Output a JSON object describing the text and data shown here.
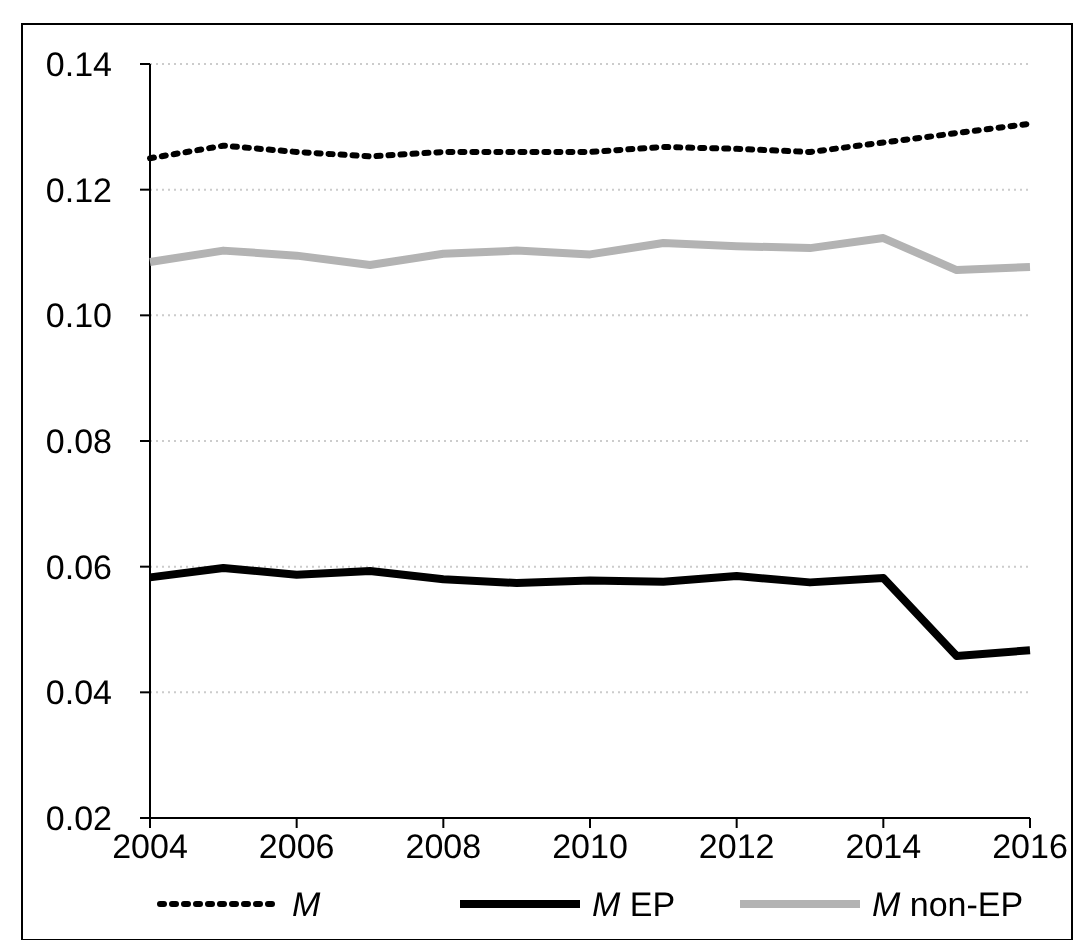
{
  "chart_data": {
    "type": "line",
    "x": [
      2004,
      2005,
      2006,
      2007,
      2008,
      2009,
      2010,
      2011,
      2012,
      2013,
      2014,
      2015,
      2016
    ],
    "xlim": [
      2004,
      2016
    ],
    "xticks": [
      2004,
      2006,
      2008,
      2010,
      2012,
      2014,
      2016
    ],
    "ylim": [
      0.02,
      0.14
    ],
    "yticks": [
      {
        "value": 0.02,
        "label": "0.02"
      },
      {
        "value": 0.04,
        "label": "0.04"
      },
      {
        "value": 0.06,
        "label": "0.06"
      },
      {
        "value": 0.08,
        "label": "0.08"
      },
      {
        "value": 0.1,
        "label": "0.10"
      },
      {
        "value": 0.12,
        "label": "0.12"
      },
      {
        "value": 0.14,
        "label": "0.14"
      }
    ],
    "grid": "y",
    "legend": "bottom",
    "series": [
      {
        "name": "M",
        "color": "#000000",
        "line_style": "dotted",
        "values": [
          0.125,
          0.127,
          0.126,
          0.1253,
          0.126,
          0.126,
          0.126,
          0.1268,
          0.1265,
          0.126,
          0.1275,
          0.129,
          0.1305
        ]
      },
      {
        "name": "M EP",
        "color": "#000000",
        "line_style": "solid",
        "values": [
          0.0583,
          0.0598,
          0.0587,
          0.0593,
          0.058,
          0.0574,
          0.0578,
          0.0576,
          0.0585,
          0.0575,
          0.0582,
          0.0458,
          0.0467
        ]
      },
      {
        "name": "M non-EP",
        "color": "#b3b3b3",
        "line_style": "solid",
        "values": [
          0.1085,
          0.1103,
          0.1095,
          0.108,
          0.1098,
          0.1103,
          0.1097,
          0.1115,
          0.111,
          0.1107,
          0.1123,
          0.1072,
          0.1077
        ]
      }
    ]
  }
}
